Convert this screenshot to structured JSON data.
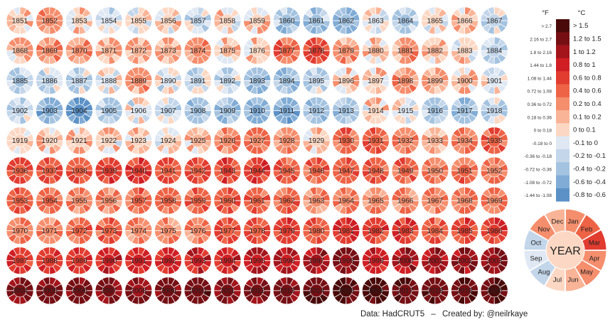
{
  "chart_data": {
    "type": "heatmap",
    "title": "",
    "description_units": [
      "°F",
      "°C"
    ],
    "years": {
      "start": 1851,
      "end": 2020,
      "columns": 17
    },
    "year_mean_anomaly_c": [
      0.1,
      0.3,
      0.1,
      -0.05,
      0.05,
      0.05,
      -0.15,
      0.05,
      0.1,
      -0.25,
      -0.25,
      -0.35,
      0.0,
      -0.2,
      0.05,
      0.1,
      -0.1,
      0.15,
      0.3,
      0.3,
      0.2,
      0.2,
      0.2,
      0.25,
      0.15,
      0.1,
      0.45,
      0.65,
      0.25,
      0.15,
      0.25,
      0.15,
      0.05,
      -0.15,
      -0.2,
      -0.1,
      -0.15,
      0.0,
      0.25,
      -0.05,
      -0.1,
      -0.15,
      -0.3,
      -0.3,
      -0.15,
      0.1,
      0.1,
      0.3,
      0.2,
      0.15,
      0.0,
      -0.15,
      -0.45,
      -0.6,
      -0.2,
      -0.05,
      -0.15,
      -0.25,
      -0.3,
      -0.4,
      -0.45,
      -0.3,
      -0.25,
      0.05,
      0.0,
      -0.2,
      -0.3,
      -0.1,
      0.1,
      0.1,
      0.1,
      0.05,
      0.1,
      0.05,
      0.15,
      0.35,
      0.4,
      0.3,
      0.1,
      0.5,
      0.55,
      0.4,
      0.2,
      0.4,
      0.5,
      0.6,
      0.6,
      0.6,
      0.65,
      0.7,
      0.6,
      0.6,
      0.65,
      0.75,
      0.55,
      0.45,
      0.6,
      0.55,
      0.5,
      0.4,
      0.45,
      0.35,
      0.6,
      0.45,
      0.35,
      0.3,
      0.45,
      0.45,
      0.55,
      0.5,
      0.5,
      0.5,
      0.25,
      0.35,
      0.35,
      0.35,
      0.35,
      0.4,
      0.4,
      0.4,
      0.35,
      0.45,
      0.5,
      0.35,
      0.35,
      0.35,
      0.6,
      0.6,
      0.7,
      0.6,
      0.8,
      0.7,
      0.7,
      0.55,
      0.65,
      0.65,
      0.75,
      0.8,
      0.8,
      0.85,
      0.85,
      0.9,
      0.9,
      0.9,
      1.0,
      1.0,
      1.05,
      1.2,
      0.95,
      1.05,
      1.05,
      1.1,
      1.15,
      1.25,
      1.3,
      1.3,
      1.25,
      1.2,
      1.3,
      1.35,
      1.25,
      1.3,
      1.35,
      1.4,
      1.55,
      1.55,
      1.5,
      1.4,
      1.5,
      1.55
    ],
    "color_scale": [
      {
        "f": "> 2.7",
        "c": "> 1.5",
        "color": "#4a0a0a"
      },
      {
        "f": "2.16 to 2.7",
        "c": "1.2 to 1.5",
        "color": "#760f14"
      },
      {
        "f": "1.8 to 2.16",
        "c": "1 to 1.2",
        "color": "#a3141b"
      },
      {
        "f": "1.44 to 1.8",
        "c": "0.8 to 1",
        "color": "#cf1f24"
      },
      {
        "f": "1.08 to 1.44",
        "c": "0.6 to 0.8",
        "color": "#e23c30"
      },
      {
        "f": "0.72 to 1.08",
        "c": "0.4 to 0.6",
        "color": "#ee6346"
      },
      {
        "f": "0.36 to 0.72",
        "c": "0.2 to 0.4",
        "color": "#f58e6d"
      },
      {
        "f": "0.18 to 0.36",
        "c": "0.1 to 0.2",
        "color": "#f9b497"
      },
      {
        "f": "0 to 0.18",
        "c": "0 to 0.1",
        "color": "#fcd8c4"
      },
      {
        "f": "-0.18 to 0",
        "c": "-0.1 to 0",
        "color": "#dfe8f3"
      },
      {
        "f": "-0.36 to -0.18",
        "c": "-0.2 to -0.1",
        "color": "#c3d6ea"
      },
      {
        "f": "-0.72 to -0.36",
        "c": "-0.4 to -0.2",
        "color": "#a4c3e0"
      },
      {
        "f": "-1.08 to -0.72",
        "c": "-0.6 to -0.4",
        "color": "#81acd5"
      },
      {
        "f": "-1.44 to -1.08",
        "c": "-0.8 to -0.6",
        "color": "#5b91c6"
      }
    ]
  },
  "legend": {
    "f_unit": "°F",
    "c_unit": "°C",
    "key_center_label": "YEAR",
    "months": [
      "Jan",
      "Feb",
      "Mar",
      "Apr",
      "May",
      "Jun",
      "Jul",
      "Aug",
      "Sep",
      "Oct",
      "Nov",
      "Dec"
    ]
  },
  "footer": {
    "data_source": "Data: HadCRUT5",
    "separator": "–",
    "credit": "Created by: @neilrkaye"
  }
}
